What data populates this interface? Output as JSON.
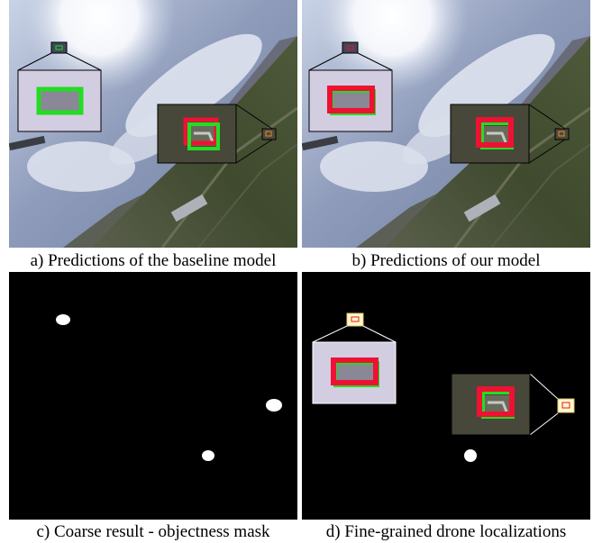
{
  "figure": {
    "panels": [
      {
        "id": "a",
        "caption": "a) Predictions of the baseline model"
      },
      {
        "id": "b",
        "caption": "b) Predictions of our model"
      },
      {
        "id": "c",
        "caption": "c) Coarse result - objectness mask"
      },
      {
        "id": "d",
        "caption": "d) Fine-grained drone localizations"
      }
    ]
  },
  "colors": {
    "ground_truth_box": "#22dd22",
    "prediction_box": "#ee1133",
    "mask_background": "#000000",
    "mask_blob": "#ffffff"
  }
}
